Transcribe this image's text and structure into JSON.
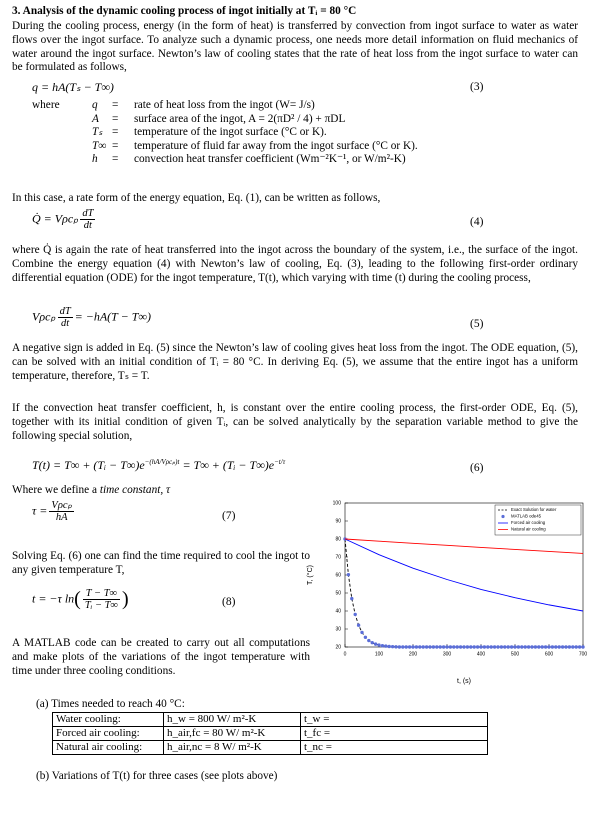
{
  "heading": "3.  Analysis of the dynamic cooling process of ingot initially at Tᵢ = 80 °C",
  "paragraphs": [
    "During the cooling process, energy (in the form of heat) is transferred by convection from ingot surface to water as water flows over the ingot surface. To analyze such a dynamic process, one needs more detail information on fluid mechanics of water around the ingot surface. Newton’s law of cooling states that the rate of heat loss from the ingot surface to water can be formulated as follows,",
    "In this case, a rate form of the energy equation, Eq. (1), can be written as follows,",
    "where Q̇ is again the rate of heat transferred into the ingot across the boundary of the system, i.e., the surface of the ingot. Combine the energy equation (4) with Newton’s law of cooling, Eq. (3), leading to the following first-order ordinary differential equation (ODE) for the ingot temperature, T(t), which varying with time (t) during the cooling process,",
    "A negative sign is added in Eq. (5) since the Newton’s law of cooling gives heat loss from the ingot. The ODE equation, (5), can be solved with an initial condition of Tᵢ = 80 °C. In deriving Eq. (5), we assume that the entire ingot has a uniform temperature, therefore, Tₛ = T.",
    "If the convection heat transfer coefficient, h, is constant over the entire cooling process, the first-order ODE, Eq. (5), together with its initial condition of given Tᵢ,  can be solved analytically by the separation variable method to give the following special solution,",
    "Solving Eq. (6) one can find the time required to cool the ingot to any given temperature T,",
    "A MATLAB code can be created to carry out all computations and make plots of the variations of the ingot temperature with time under three cooling conditions."
  ],
  "define": {
    "text": "Where we define a ",
    "italic": "time constant, τ"
  },
  "eq3": {
    "expr": "q = hA(Tₛ − T∞)",
    "number": "(3)"
  },
  "where": {
    "label": "where",
    "items": [
      {
        "symbol": "q",
        "eq": "=",
        "def": "rate of heat loss from the ingot (W= J/s)"
      },
      {
        "symbol": "A",
        "eq": "=",
        "def": "surface area of the ingot, A = 2(πD² / 4) + πDL"
      },
      {
        "symbol": "Tₛ",
        "eq": "=",
        "def": "temperature of the ingot surface (°C or K)."
      },
      {
        "symbol": "T∞",
        "eq": "=",
        "def": "temperature of fluid far away from the ingot surface (°C or K)."
      },
      {
        "symbol": "h",
        "eq": "=",
        "def": "convection heat transfer coefficient (Wm⁻²K⁻¹, or W/m²-K)"
      }
    ]
  },
  "eq4": {
    "lhs": "Q̇ = Vρcₚ",
    "num": "dT",
    "den": "dt",
    "number": "(4)"
  },
  "eq5": {
    "lhs": "Vρcₚ",
    "num": "dT",
    "den": "dt",
    "rhs": "= −hA(T − T∞)",
    "number": "(5)"
  },
  "eq6": {
    "a": "T(t) = T∞ + (Tᵢ − T∞)e",
    "sup1": "−(hA/Vρcₚ)t",
    "b": " = T∞ + (Tᵢ − T∞)e",
    "sup2": "−t/τ",
    "number": "(6)"
  },
  "eq7": {
    "lhs": "τ =",
    "num": "Vρcₚ",
    "den": "hA",
    "number": "(7)"
  },
  "eq8": {
    "lhs": "t = −τ ln",
    "num": "T − T∞",
    "den": "Tᵢ − T∞",
    "number": "(8)"
  },
  "part_a": "(a)  Times needed to reach 40 °C:",
  "table": {
    "rows": [
      [
        "Water cooling:",
        "h_w = 800 W/ m²-K",
        "t_w  ="
      ],
      [
        "Forced air cooling:",
        "h_air,fc = 80 W/ m²-K",
        "t_fc  ="
      ],
      [
        "Natural air cooling:",
        "h_air,nc = 8 W/ m²-K",
        "t_nc  ="
      ]
    ]
  },
  "part_b": "(b)  Variations of T(t) for three cases (see plots above)",
  "chart_data": {
    "type": "line",
    "x_label": "t, (s)",
    "y_label": "T, (°C)",
    "xlim": [
      0,
      700
    ],
    "xticks": [
      0,
      100,
      200,
      300,
      400,
      500,
      600,
      700
    ],
    "ylim": [
      20,
      100
    ],
    "yticks": [
      20,
      30,
      40,
      50,
      60,
      70,
      80,
      90,
      100
    ],
    "grid": false,
    "legend": "upper right",
    "series": [
      {
        "name": "Exact Solution for water",
        "color": "#000000",
        "style": "dashed",
        "x": [
          0,
          10,
          20,
          30,
          40,
          50,
          60,
          70,
          80,
          90,
          100,
          110,
          120,
          130,
          140,
          150,
          160,
          170,
          180,
          190,
          200,
          210,
          220,
          230,
          240,
          250,
          260,
          270,
          280,
          290,
          300,
          310,
          320,
          330,
          340,
          350,
          360,
          370,
          380,
          390,
          400,
          410,
          420,
          430,
          440,
          450,
          460,
          470,
          480,
          490,
          500,
          510,
          520,
          530,
          540,
          550,
          560,
          570,
          580,
          590,
          600,
          610,
          620,
          630,
          640,
          650,
          660,
          670,
          680,
          690,
          700
        ],
        "values": [
          80,
          60.2,
          46.9,
          38.1,
          32.1,
          28.1,
          25.4,
          23.6,
          22.4,
          21.6,
          21.1,
          20.7,
          20.5,
          20.3,
          20.2,
          20.1,
          20,
          20,
          20,
          20,
          20,
          20,
          20,
          20,
          20,
          20,
          20,
          20,
          20,
          20,
          20,
          20,
          20,
          20,
          20,
          20,
          20,
          20,
          20,
          20,
          20,
          20,
          20,
          20,
          20,
          20,
          20,
          20,
          20,
          20,
          20,
          20,
          20,
          20,
          20,
          20,
          20,
          20,
          20,
          20,
          20,
          20,
          20,
          20,
          20,
          20,
          20,
          20,
          20,
          20,
          20
        ]
      },
      {
        "name": "MATLAB ode45",
        "color": "#5b6ed8",
        "style": "markers",
        "x": [
          0,
          10,
          20,
          30,
          40,
          50,
          60,
          70,
          80,
          90,
          100,
          110,
          120,
          130,
          140,
          150,
          160,
          170,
          180,
          190,
          200,
          210,
          220,
          230,
          240,
          250,
          260,
          270,
          280,
          290,
          300,
          310,
          320,
          330,
          340,
          350,
          360,
          370,
          380,
          390,
          400,
          410,
          420,
          430,
          440,
          450,
          460,
          470,
          480,
          490,
          500,
          510,
          520,
          530,
          540,
          550,
          560,
          570,
          580,
          590,
          600,
          610,
          620,
          630,
          640,
          650,
          660,
          670,
          680,
          690,
          700
        ],
        "values": [
          80,
          60.2,
          46.9,
          38.1,
          32.1,
          28.1,
          25.4,
          23.6,
          22.4,
          21.6,
          21.1,
          20.7,
          20.5,
          20.3,
          20.2,
          20.1,
          20,
          20,
          20,
          20,
          20,
          20,
          20,
          20,
          20,
          20,
          20,
          20,
          20,
          20,
          20,
          20,
          20,
          20,
          20,
          20,
          20,
          20,
          20,
          20,
          20,
          20,
          20,
          20,
          20,
          20,
          20,
          20,
          20,
          20,
          20,
          20,
          20,
          20,
          20,
          20,
          20,
          20,
          20,
          20,
          20,
          20,
          20,
          20,
          20,
          20,
          20,
          20,
          20,
          20,
          20
        ]
      },
      {
        "name": "Forced air cooling",
        "color": "#0000ff",
        "style": "solid",
        "x": [
          0,
          100,
          200,
          300,
          400,
          500,
          600,
          700
        ],
        "values": [
          80,
          71.3,
          63.8,
          57.5,
          52,
          47.4,
          43.4,
          40
        ]
      },
      {
        "name": "Natural air cooling",
        "color": "#ff0000",
        "style": "solid",
        "x": [
          0,
          100,
          200,
          300,
          400,
          500,
          600,
          700
        ],
        "values": [
          80,
          78.8,
          77.6,
          76.5,
          75.3,
          74.2,
          73.1,
          72
        ]
      }
    ]
  }
}
